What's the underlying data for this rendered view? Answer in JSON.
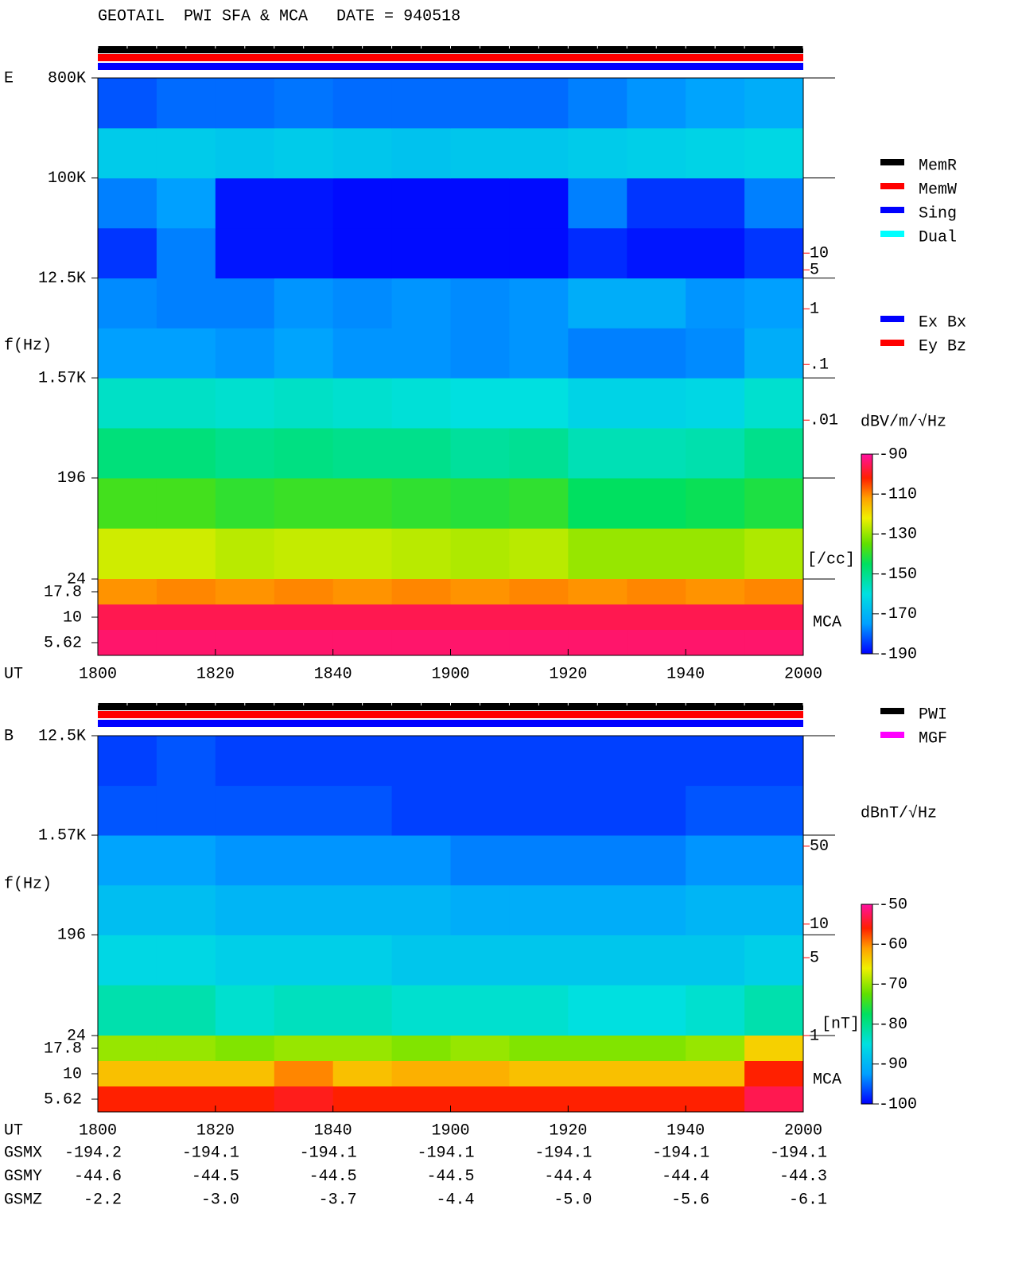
{
  "title": "GEOTAIL  PWI SFA & MCA   DATE = 940518",
  "chart_data": [
    {
      "type": "heatmap",
      "panel_label": "E",
      "ylabel": "f(Hz)",
      "xlabel": "UT",
      "yscale": "log",
      "xlim": [
        0,
        120
      ],
      "xticks": [
        {
          "value": 0,
          "label": "1800"
        },
        {
          "value": 20,
          "label": "1820"
        },
        {
          "value": 40,
          "label": "1840"
        },
        {
          "value": 60,
          "label": "1900"
        },
        {
          "value": 80,
          "label": "1920"
        },
        {
          "value": 100,
          "label": "1940"
        },
        {
          "value": 120,
          "label": "2000"
        }
      ],
      "ylim": [
        24,
        800000
      ],
      "yticks": [
        {
          "value": 800000,
          "label": "800K"
        },
        {
          "value": 100000,
          "label": "100K"
        },
        {
          "value": 12500,
          "label": "12.5K"
        },
        {
          "value": 1570,
          "label": "1.57K"
        },
        196,
        24
      ],
      "x_edges": [
        0,
        10,
        20,
        30,
        40,
        50,
        60,
        70,
        80,
        90,
        100,
        110,
        120
      ],
      "y_edges": [
        24,
        69,
        196,
        555,
        1570,
        4430,
        12500,
        35400,
        100000,
        283000,
        800000
      ],
      "z": [
        [
          -125,
          -125,
          -127,
          -126,
          -126,
          -127,
          -128,
          -127,
          -130,
          -130,
          -130,
          -128
        ],
        [
          -138,
          -138,
          -140,
          -139,
          -139,
          -140,
          -141,
          -140,
          -145,
          -145,
          -144,
          -142
        ],
        [
          -148,
          -148,
          -150,
          -149,
          -150,
          -150,
          -152,
          -151,
          -155,
          -155,
          -154,
          -150
        ],
        [
          -157,
          -157,
          -158,
          -157,
          -158,
          -159,
          -160,
          -160,
          -163,
          -163,
          -162,
          -158
        ],
        [
          -175,
          -175,
          -176,
          -174,
          -176,
          -176,
          -177,
          -176,
          -178,
          -178,
          -177,
          -172
        ],
        [
          -177,
          -178,
          -178,
          -176,
          -177,
          -176,
          -177,
          -176,
          -172,
          -172,
          -176,
          -175
        ],
        [
          -185,
          -178,
          -188,
          -188,
          -189,
          -189,
          -189,
          -189,
          -186,
          -188,
          -188,
          -185
        ],
        [
          -178,
          -175,
          -188,
          -188,
          -189,
          -189,
          -189,
          -189,
          -178,
          -185,
          -185,
          -178
        ],
        [
          -165,
          -165,
          -166,
          -165,
          -166,
          -167,
          -166,
          -166,
          -165,
          -164,
          -163,
          -162
        ],
        [
          -182,
          -180,
          -180,
          -179,
          -180,
          -180,
          -180,
          -180,
          -178,
          -176,
          -174,
          -172
        ]
      ],
      "mca_label": "MCA",
      "mca_bands": [
        17.8,
        10,
        5.62
      ],
      "mca_z": [
        [
          -111,
          -110,
          -111,
          -110,
          -111,
          -110,
          -111,
          -110,
          -111,
          -110,
          -111,
          -110
        ],
        [
          -96,
          -96,
          -96,
          -96,
          -96,
          -96,
          -96,
          -96,
          -96,
          -96,
          -96,
          -96
        ],
        [
          -94,
          -94,
          -94,
          -94,
          -94,
          -94,
          -94,
          -94,
          -94,
          -94,
          -94,
          -94
        ]
      ],
      "colorbar": {
        "label": "dBV/m/√Hz",
        "lim": [
          -190,
          -90
        ],
        "ticks": [
          -90,
          -110,
          -130,
          -150,
          -170,
          -190
        ]
      },
      "y2label": "[/cc]",
      "y2scale": "log",
      "y2color": "#ff0000",
      "y2lim": [
        1.4e-05,
        14000
      ],
      "y2ticks": [
        10,
        5,
        1,
        {
          "value": 0.1,
          "label": ".1"
        },
        {
          "value": 0.01,
          "label": ".01"
        }
      ],
      "legend": [
        {
          "name": "MemR",
          "color": "#000000"
        },
        {
          "name": "MemW",
          "color": "#ff0000"
        },
        {
          "name": "Sing",
          "color": "#0000ff"
        },
        {
          "name": "Dual",
          "color": "#00ffff"
        }
      ],
      "legend2": [
        {
          "name": "Ex Bx",
          "color": "#0000ff"
        },
        {
          "name": "Ey Bz",
          "color": "#ff0000"
        }
      ]
    },
    {
      "type": "heatmap",
      "panel_label": "B",
      "ylabel": "f(Hz)",
      "xlabel": "UT",
      "yscale": "log",
      "xlim": [
        0,
        120
      ],
      "xticks": [
        {
          "value": 0,
          "label": "1800"
        },
        {
          "value": 20,
          "label": "1820"
        },
        {
          "value": 40,
          "label": "1840"
        },
        {
          "value": 60,
          "label": "1900"
        },
        {
          "value": 80,
          "label": "1920"
        },
        {
          "value": 100,
          "label": "1940"
        },
        {
          "value": 120,
          "label": "2000"
        }
      ],
      "ylim": [
        24,
        12500
      ],
      "yticks": [
        {
          "value": 12500,
          "label": "12.5K"
        },
        {
          "value": 1570,
          "label": "1.57K"
        },
        196,
        24
      ],
      "x_edges": [
        0,
        10,
        20,
        30,
        40,
        50,
        60,
        70,
        80,
        90,
        100,
        110,
        120
      ],
      "y_edges": [
        24,
        69,
        196,
        555,
        1570,
        4430,
        12500
      ],
      "z": [
        [
          -82,
          -82,
          -84,
          -83,
          -83,
          -84,
          -84,
          -84,
          -85,
          -85,
          -84,
          -82
        ],
        [
          -86,
          -86,
          -87,
          -87,
          -87,
          -88,
          -88,
          -88,
          -88,
          -88,
          -88,
          -87
        ],
        [
          -89,
          -89,
          -90,
          -90,
          -90,
          -90,
          -91,
          -91,
          -91,
          -91,
          -90,
          -90
        ],
        [
          -92,
          -92,
          -93,
          -93,
          -93,
          -93,
          -94,
          -94,
          -94,
          -94,
          -93,
          -93
        ],
        [
          -96,
          -96,
          -96,
          -96,
          -96,
          -97,
          -97,
          -97,
          -97,
          -97,
          -96,
          -96
        ],
        [
          -97,
          -96,
          -97,
          -97,
          -97,
          -97,
          -97,
          -97,
          -97,
          -97,
          -97,
          -97
        ]
      ],
      "mca_label": "MCA",
      "mca_bands": [
        17.8,
        10,
        5.62
      ],
      "mca_z": [
        [
          -70,
          -70,
          -71,
          -70,
          -70,
          -71,
          -70,
          -71,
          -71,
          -71,
          -70,
          -64
        ],
        [
          -63,
          -63,
          -63,
          -60,
          -63,
          -62,
          -62,
          -63,
          -63,
          -63,
          -63,
          -56
        ],
        [
          -56,
          -56,
          -56,
          -55,
          -56,
          -56,
          -56,
          -56,
          -56,
          -56,
          -56,
          -53
        ]
      ],
      "colorbar": {
        "label": "dBnT/√Hz",
        "lim": [
          -100,
          -50
        ],
        "ticks": [
          -50,
          -60,
          -70,
          -80,
          -90,
          -100
        ]
      },
      "y2label": "[nT]",
      "y2scale": "log",
      "y2color": "#ff0000",
      "y2lim": [
        1,
        490
      ],
      "y2ticks": [
        50,
        10,
        5,
        1
      ],
      "legend": [
        {
          "name": "PWI",
          "color": "#000000"
        },
        {
          "name": "MGF",
          "color": "#ff00ff"
        }
      ]
    }
  ],
  "orbit": {
    "rows": [
      {
        "name": "GSMX",
        "values": [
          "-194.2",
          "-194.1",
          "-194.1",
          "-194.1",
          "-194.1",
          "-194.1",
          "-194.1"
        ]
      },
      {
        "name": "GSMY",
        "values": [
          "-44.6",
          "-44.5",
          "-44.5",
          "-44.5",
          "-44.4",
          "-44.4",
          "-44.3"
        ]
      },
      {
        "name": "GSMZ",
        "values": [
          "-2.2",
          "-3.0",
          "-3.7",
          "-4.4",
          "-5.0",
          "-5.6",
          "-6.1"
        ]
      }
    ]
  }
}
